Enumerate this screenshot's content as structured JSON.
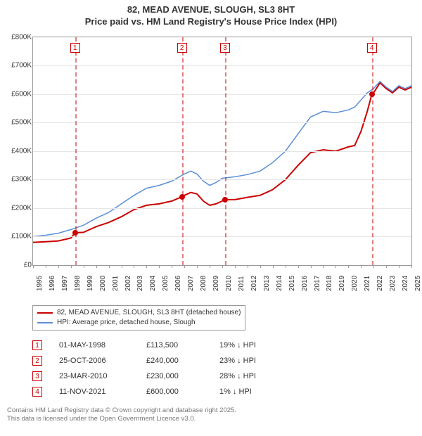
{
  "title": {
    "line1": "82, MEAD AVENUE, SLOUGH, SL3 8HT",
    "line2": "Price paid vs. HM Land Registry's House Price Index (HPI)",
    "fontsize": 13,
    "color": "#333333"
  },
  "chart": {
    "type": "line",
    "background_color": "#ffffff",
    "border_color": "#999999",
    "grid_color": "#e6e6e6",
    "x": {
      "min": 1995,
      "max": 2025,
      "ticks": [
        1995,
        1996,
        1997,
        1998,
        1999,
        2000,
        2001,
        2002,
        2003,
        2004,
        2005,
        2006,
        2007,
        2008,
        2009,
        2010,
        2011,
        2012,
        2013,
        2014,
        2015,
        2016,
        2017,
        2018,
        2019,
        2020,
        2021,
        2022,
        2023,
        2024,
        2025
      ],
      "label_fontsize": 10,
      "label_rotation": -90
    },
    "y": {
      "min": 0,
      "max": 800000,
      "ticks": [
        0,
        100000,
        200000,
        300000,
        400000,
        500000,
        600000,
        700000,
        800000
      ],
      "tick_labels": [
        "£0",
        "£100K",
        "£200K",
        "£300K",
        "£400K",
        "£500K",
        "£600K",
        "£700K",
        "£800K"
      ],
      "label_fontsize": 10,
      "prefix": "£",
      "suffix": "K"
    },
    "series": [
      {
        "name": "property",
        "label": "82, MEAD AVENUE, SLOUGH, SL3 8HT (detached house)",
        "color": "#cc0000",
        "line_width": 2,
        "data": [
          [
            1995.0,
            80000
          ],
          [
            1996.0,
            82000
          ],
          [
            1997.0,
            85000
          ],
          [
            1998.0,
            95000
          ],
          [
            1998.33,
            113500
          ],
          [
            1999.0,
            115000
          ],
          [
            2000.0,
            135000
          ],
          [
            2001.0,
            150000
          ],
          [
            2002.0,
            170000
          ],
          [
            2003.0,
            195000
          ],
          [
            2004.0,
            210000
          ],
          [
            2005.0,
            215000
          ],
          [
            2006.0,
            225000
          ],
          [
            2006.8,
            240000
          ],
          [
            2007.0,
            245000
          ],
          [
            2007.5,
            255000
          ],
          [
            2008.0,
            250000
          ],
          [
            2008.5,
            225000
          ],
          [
            2009.0,
            210000
          ],
          [
            2009.5,
            215000
          ],
          [
            2010.0,
            225000
          ],
          [
            2010.22,
            230000
          ],
          [
            2011.0,
            230000
          ],
          [
            2012.0,
            238000
          ],
          [
            2013.0,
            245000
          ],
          [
            2014.0,
            265000
          ],
          [
            2015.0,
            300000
          ],
          [
            2016.0,
            350000
          ],
          [
            2017.0,
            395000
          ],
          [
            2018.0,
            405000
          ],
          [
            2019.0,
            400000
          ],
          [
            2020.0,
            415000
          ],
          [
            2020.5,
            420000
          ],
          [
            2021.0,
            470000
          ],
          [
            2021.5,
            540000
          ],
          [
            2021.86,
            600000
          ],
          [
            2022.0,
            605000
          ],
          [
            2022.5,
            640000
          ],
          [
            2023.0,
            620000
          ],
          [
            2023.5,
            605000
          ],
          [
            2024.0,
            625000
          ],
          [
            2024.5,
            615000
          ],
          [
            2025.0,
            625000
          ]
        ]
      },
      {
        "name": "hpi",
        "label": "HPI: Average price, detached house, Slough",
        "color": "#5b8fd6",
        "line_width": 1.5,
        "data": [
          [
            1995.0,
            100000
          ],
          [
            1996.0,
            105000
          ],
          [
            1997.0,
            112000
          ],
          [
            1998.0,
            125000
          ],
          [
            1999.0,
            140000
          ],
          [
            2000.0,
            165000
          ],
          [
            2001.0,
            185000
          ],
          [
            2002.0,
            215000
          ],
          [
            2003.0,
            245000
          ],
          [
            2004.0,
            270000
          ],
          [
            2005.0,
            280000
          ],
          [
            2006.0,
            295000
          ],
          [
            2007.0,
            320000
          ],
          [
            2007.5,
            330000
          ],
          [
            2008.0,
            320000
          ],
          [
            2008.5,
            295000
          ],
          [
            2009.0,
            280000
          ],
          [
            2009.5,
            290000
          ],
          [
            2010.0,
            305000
          ],
          [
            2011.0,
            310000
          ],
          [
            2012.0,
            318000
          ],
          [
            2013.0,
            330000
          ],
          [
            2014.0,
            360000
          ],
          [
            2015.0,
            400000
          ],
          [
            2016.0,
            460000
          ],
          [
            2017.0,
            520000
          ],
          [
            2018.0,
            540000
          ],
          [
            2019.0,
            535000
          ],
          [
            2020.0,
            545000
          ],
          [
            2020.5,
            555000
          ],
          [
            2021.0,
            580000
          ],
          [
            2021.5,
            605000
          ],
          [
            2022.0,
            620000
          ],
          [
            2022.5,
            645000
          ],
          [
            2023.0,
            625000
          ],
          [
            2023.5,
            610000
          ],
          [
            2024.0,
            630000
          ],
          [
            2024.5,
            620000
          ],
          [
            2025.0,
            630000
          ]
        ]
      }
    ],
    "sale_markers": [
      {
        "n": "1",
        "x": 1998.33,
        "y": 113500
      },
      {
        "n": "2",
        "x": 2006.8,
        "y": 240000
      },
      {
        "n": "3",
        "x": 2010.22,
        "y": 230000
      },
      {
        "n": "4",
        "x": 2021.86,
        "y": 600000
      }
    ]
  },
  "legend": {
    "border_color": "#999999",
    "items": [
      {
        "color": "#cc0000",
        "label": "82, MEAD AVENUE, SLOUGH, SL3 8HT (detached house)"
      },
      {
        "color": "#5b8fd6",
        "label": "HPI: Average price, detached house, Slough"
      }
    ]
  },
  "sales_table": {
    "arrow": "↓",
    "suffix": "HPI",
    "rows": [
      {
        "n": "1",
        "date": "01-MAY-1998",
        "price": "£113,500",
        "diff_pct": "19%"
      },
      {
        "n": "2",
        "date": "25-OCT-2006",
        "price": "£240,000",
        "diff_pct": "23%"
      },
      {
        "n": "3",
        "date": "23-MAR-2010",
        "price": "£230,000",
        "diff_pct": "28%"
      },
      {
        "n": "4",
        "date": "11-NOV-2021",
        "price": "£600,000",
        "diff_pct": "1%"
      }
    ]
  },
  "footer": {
    "line1": "Contains HM Land Registry data © Crown copyright and database right 2025.",
    "line2": "This data is licensed under the Open Government Licence v3.0.",
    "color": "#777777"
  }
}
